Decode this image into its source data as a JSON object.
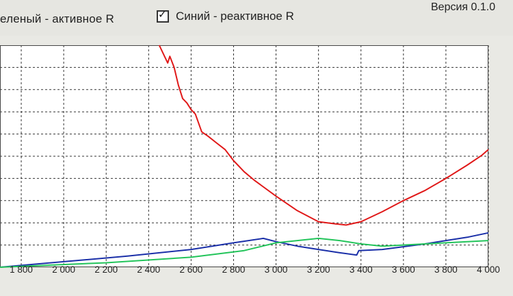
{
  "header": {
    "legend_green": "еленый - активное R",
    "legend_blue": "Синий - реактивное R",
    "checkbox_mark": "✓",
    "version": "Версия 0.1.0"
  },
  "chart_data": {
    "type": "line",
    "x_ticks": [
      "1 800",
      "2 000",
      "2 200",
      "2 400",
      "2 600",
      "2 800",
      "3 000",
      "3 200",
      "3 400",
      "3 600",
      "3 800",
      "4 000"
    ],
    "xlim": [
      1700,
      4000
    ],
    "ylim": [
      0,
      10
    ],
    "grid": true,
    "series": [
      {
        "color": "#e01818",
        "x": [
          2450,
          2490,
          2500,
          2520,
          2540,
          2560,
          2580,
          2600,
          2620,
          2650,
          2680,
          2720,
          2760,
          2800,
          2850,
          2900,
          3000,
          3100,
          3200,
          3280,
          3330,
          3400,
          3500,
          3600,
          3700,
          3800,
          3900,
          3970,
          4000
        ],
        "y": [
          10.0,
          9.2,
          9.5,
          9.0,
          8.2,
          7.6,
          7.4,
          7.1,
          6.9,
          6.1,
          5.9,
          5.6,
          5.3,
          4.8,
          4.3,
          3.9,
          3.2,
          2.55,
          2.05,
          1.95,
          1.9,
          2.05,
          2.5,
          3.0,
          3.45,
          4.0,
          4.6,
          5.05,
          5.3
        ]
      },
      {
        "color": "#1a2fa8",
        "x": [
          1700,
          2000,
          2300,
          2600,
          2800,
          2940,
          3000,
          3100,
          3200,
          3300,
          3380,
          3390,
          3500,
          3700,
          3900,
          4000
        ],
        "y": [
          0.0,
          0.25,
          0.5,
          0.8,
          1.1,
          1.3,
          1.15,
          0.95,
          0.8,
          0.65,
          0.55,
          0.75,
          0.8,
          1.05,
          1.35,
          1.55
        ]
      },
      {
        "color": "#22c45a",
        "x": [
          1700,
          2200,
          2600,
          2850,
          3000,
          3100,
          3200,
          3300,
          3400,
          3500,
          3700,
          3900,
          4000
        ],
        "y": [
          0.0,
          0.2,
          0.45,
          0.75,
          1.1,
          1.2,
          1.3,
          1.2,
          1.05,
          0.95,
          1.05,
          1.15,
          1.2
        ]
      }
    ]
  }
}
